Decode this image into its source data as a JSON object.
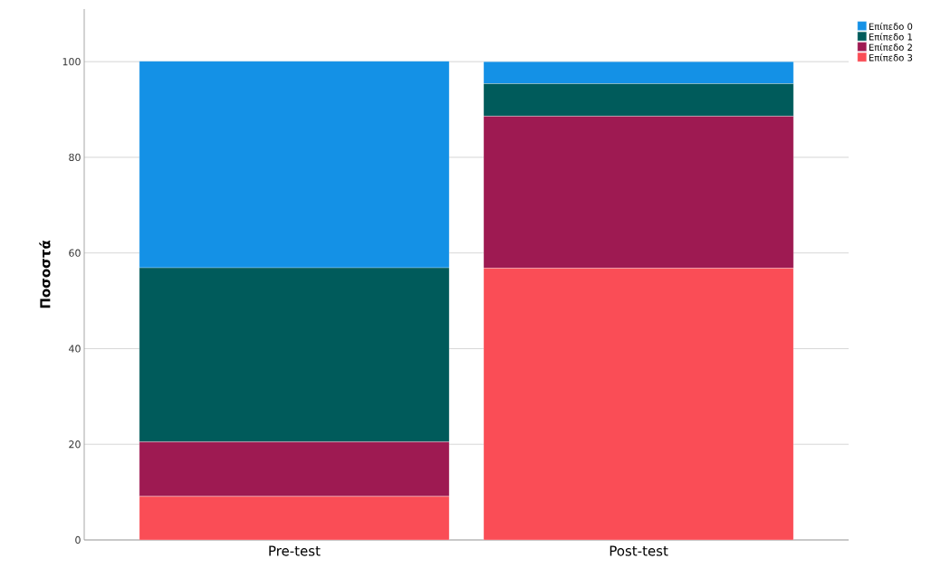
{
  "chart_data": {
    "type": "bar",
    "stacked": true,
    "ylabel": "Ποσοστά",
    "categories": [
      "Pre-test",
      "Post-test"
    ],
    "series": [
      {
        "name": "Επίπεδο 3",
        "color": "#fa4d56",
        "values": [
          9.1,
          56.8
        ]
      },
      {
        "name": "Επίπεδο 2",
        "color": "#9e1a52",
        "values": [
          11.4,
          31.8
        ]
      },
      {
        "name": "Επίπεδο 1",
        "color": "#005b5b",
        "values": [
          36.4,
          6.8
        ]
      },
      {
        "name": "Επίπεδο 0",
        "color": "#1491e6",
        "values": [
          43.2,
          4.6
        ]
      }
    ],
    "ylim": [
      0,
      111
    ],
    "yticks": [
      0,
      20,
      40,
      60,
      80,
      100
    ],
    "grid": "y",
    "legend": "top right"
  }
}
